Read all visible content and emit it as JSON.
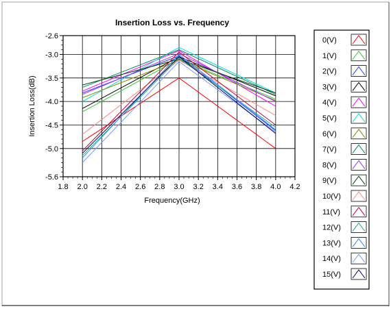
{
  "chart_data": {
    "type": "line",
    "title": "Insertion Loss vs. Frequency",
    "xlabel": "Frequency(GHz)",
    "ylabel": "Insertion Loss(dB)",
    "xlim": [
      1.8,
      4.2
    ],
    "ylim": [
      -5.6,
      -2.6
    ],
    "x_ticks": [
      "1.8",
      "2.0",
      "2.2",
      "2.4",
      "2.6",
      "2.8",
      "3.0",
      "3.2",
      "3.4",
      "3.6",
      "3.8",
      "4.0",
      "4.2"
    ],
    "y_ticks": [
      "-2.6",
      "-3.0",
      "-3.5",
      "-4.0",
      "-4.5",
      "-5.0",
      "-5.6"
    ],
    "y_tick_values": [
      -2.6,
      -3.0,
      -3.5,
      -4.0,
      -4.5,
      -5.0,
      -5.6
    ],
    "x_tick_values": [
      1.8,
      2.0,
      2.2,
      2.4,
      2.6,
      2.8,
      3.0,
      3.2,
      3.4,
      3.6,
      3.8,
      4.0,
      4.2
    ],
    "grid": true,
    "legend_position": "right",
    "x": [
      2.0,
      3.0,
      4.0
    ],
    "series": [
      {
        "name": "0(V)",
        "color": "#ff0000",
        "values": [
          -4.85,
          -3.5,
          -5.0
        ]
      },
      {
        "name": "1(V)",
        "color": "#33cc33",
        "values": [
          -4.22,
          -3.1,
          -3.95
        ]
      },
      {
        "name": "2(V)",
        "color": "#2244ff",
        "values": [
          -3.82,
          -3.03,
          -4.62
        ]
      },
      {
        "name": "3(V)",
        "color": "#000000",
        "values": [
          -4.15,
          -3.05,
          -3.88
        ]
      },
      {
        "name": "4(V)",
        "color": "#ff00ff",
        "values": [
          -3.78,
          -2.92,
          -4.1
        ]
      },
      {
        "name": "5(V)",
        "color": "#00dddd",
        "values": [
          -4.0,
          -2.85,
          -3.82
        ]
      },
      {
        "name": "6(V)",
        "color": "#888800",
        "values": [
          -3.92,
          -3.12,
          -3.98
        ]
      },
      {
        "name": "7(V)",
        "color": "#008866",
        "values": [
          -3.7,
          -2.9,
          -3.85
        ]
      },
      {
        "name": "8(V)",
        "color": "#9933ff",
        "values": [
          -3.85,
          -2.98,
          -4.0
        ]
      },
      {
        "name": "9(V)",
        "color": "#004400",
        "values": [
          -3.65,
          -3.1,
          -3.82
        ]
      },
      {
        "name": "10(V)",
        "color": "#ff8888",
        "values": [
          -4.7,
          -3.12,
          -4.3
        ]
      },
      {
        "name": "11(V)",
        "color": "#cc0033",
        "values": [
          -5.05,
          -2.95,
          -4.5
        ]
      },
      {
        "name": "12(V)",
        "color": "#22aa88",
        "values": [
          -5.15,
          -3.08,
          -4.55
        ]
      },
      {
        "name": "13(V)",
        "color": "#3388ff",
        "values": [
          -5.2,
          -3.0,
          -4.6
        ]
      },
      {
        "name": "14(V)",
        "color": "#7799ff",
        "values": [
          -5.3,
          -3.15,
          -4.65
        ]
      },
      {
        "name": "15(V)",
        "color": "#000066",
        "values": [
          -5.1,
          -3.05,
          -4.68
        ]
      }
    ]
  }
}
